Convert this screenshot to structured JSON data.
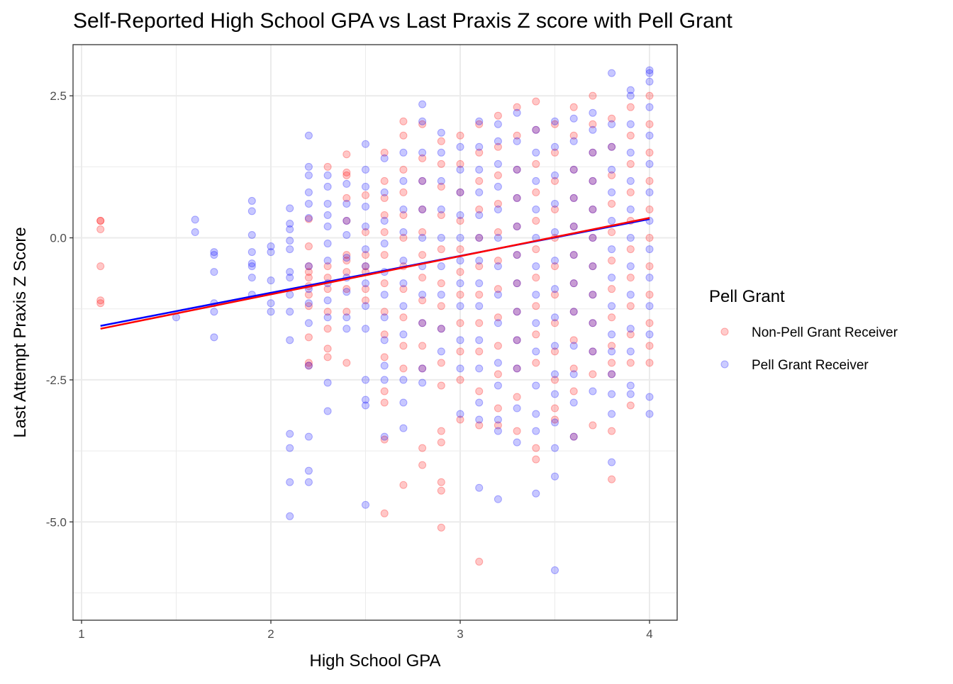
{
  "chart_data": {
    "type": "scatter",
    "title": "Self-Reported High School GPA vs Last Praxis Z score with Pell Grant",
    "xlabel": "High School GPA",
    "ylabel": "Last Attempt Praxis Z Score",
    "xlim": [
      0.955,
      4.146
    ],
    "ylim": [
      -6.73,
      3.4
    ],
    "xticks": [
      1,
      2,
      3,
      4
    ],
    "xtick_labels": [
      "1",
      "2",
      "3",
      "4"
    ],
    "yticks": [
      2.5,
      0,
      -2.5,
      -5
    ],
    "ytick_labels": [
      "2.5",
      "0.0",
      "-2.5",
      "-5.0"
    ],
    "grid": true,
    "legend": {
      "title": "Pell Grant",
      "placement": "right"
    },
    "series": [
      {
        "name": "Non-Pell Grant Receiver",
        "color": "#ff0000",
        "trend_line": {
          "x": [
            1.1,
            4.0
          ],
          "y": [
            -1.6,
            0.35
          ]
        },
        "columns": [
          {
            "x": 1.1,
            "y": [
              0.3,
              0.3,
              0.15,
              -0.5,
              -1.1,
              -1.15
            ]
          },
          {
            "x": 2.2,
            "y": [
              0.33,
              -0.15,
              -0.5,
              -0.6,
              -0.7,
              -0.85,
              -1.0,
              -1.2,
              -1.75,
              -2.2,
              -2.25
            ]
          },
          {
            "x": 2.3,
            "y": [
              1.25,
              -0.5,
              -0.7,
              -0.9,
              -1.3,
              -1.6,
              -1.95,
              -2.1
            ]
          },
          {
            "x": 2.4,
            "y": [
              1.47,
              1.15,
              1.1,
              0.7,
              0.3,
              -0.3,
              -0.4,
              -0.6,
              -0.9,
              -1.3,
              -2.2
            ]
          },
          {
            "x": 2.5,
            "y": [
              0.75,
              0.1,
              -0.3,
              -0.5,
              -0.6,
              -0.9,
              -1.1
            ]
          },
          {
            "x": 2.6,
            "y": [
              1.5,
              1.0,
              0.7,
              0.4,
              0.1,
              -0.3,
              -0.8,
              -1.3,
              -1.7,
              -2.1,
              -2.7,
              -2.9,
              -3.55,
              -4.85
            ]
          },
          {
            "x": 2.7,
            "y": [
              2.05,
              1.8,
              1.2,
              0.8,
              0.4,
              0.0,
              -0.5,
              -0.9,
              -1.4,
              -1.9,
              -2.3,
              -4.35
            ]
          },
          {
            "x": 2.8,
            "y": [
              2.0,
              1.4,
              1.0,
              0.5,
              0.1,
              -0.3,
              -0.7,
              -1.1,
              -1.5,
              -1.9,
              -2.3,
              -3.7,
              -4.0
            ]
          },
          {
            "x": 2.9,
            "y": [
              1.7,
              1.3,
              0.9,
              0.4,
              -0.2,
              -0.8,
              -1.2,
              -1.6,
              -2.2,
              -2.6,
              -3.4,
              -3.6,
              -4.3,
              -4.45,
              -5.1
            ]
          },
          {
            "x": 3.0,
            "y": [
              1.8,
              1.3,
              0.8,
              0.3,
              -0.2,
              -0.6,
              -1.0,
              -1.5,
              -2.0,
              -2.5,
              -3.2
            ]
          },
          {
            "x": 3.1,
            "y": [
              2.0,
              1.5,
              1.0,
              0.5,
              0.0,
              -0.5,
              -1.0,
              -1.5,
              -2.0,
              -2.7,
              -3.3,
              -5.7
            ]
          },
          {
            "x": 3.2,
            "y": [
              2.15,
              1.6,
              1.1,
              0.6,
              0.1,
              -0.4,
              -0.9,
              -1.4,
              -1.9,
              -2.4,
              -3.0,
              -3.3
            ]
          },
          {
            "x": 3.3,
            "y": [
              2.3,
              1.8,
              1.2,
              0.7,
              0.2,
              -0.3,
              -0.8,
              -1.3,
              -1.8,
              -2.3,
              -2.8,
              -3.4
            ]
          },
          {
            "x": 3.4,
            "y": [
              2.4,
              1.9,
              1.3,
              0.8,
              0.3,
              -0.2,
              -0.7,
              -1.2,
              -1.7,
              -2.2,
              -3.7,
              -3.9
            ]
          },
          {
            "x": 3.5,
            "y": [
              2.0,
              1.5,
              1.0,
              0.5,
              0.0,
              -0.5,
              -1.0,
              -1.5,
              -2.0,
              -2.5,
              -3.0,
              -3.2
            ]
          },
          {
            "x": 3.6,
            "y": [
              2.3,
              1.8,
              1.2,
              0.7,
              0.2,
              -0.3,
              -0.8,
              -1.3,
              -1.8,
              -2.3,
              -2.7,
              -3.5
            ]
          },
          {
            "x": 3.7,
            "y": [
              2.5,
              2.0,
              1.5,
              1.0,
              0.5,
              0.0,
              -0.5,
              -1.0,
              -1.5,
              -2.0,
              -2.4,
              -3.3
            ]
          },
          {
            "x": 3.8,
            "y": [
              2.1,
              1.6,
              1.1,
              0.6,
              0.1,
              -0.4,
              -0.9,
              -1.4,
              -1.9,
              -2.2,
              -2.4,
              -3.4,
              -4.25
            ]
          },
          {
            "x": 3.9,
            "y": [
              2.3,
              1.8,
              1.3,
              0.8,
              0.3,
              -0.2,
              -0.7,
              -1.2,
              -1.7,
              -2.2,
              -2.95
            ]
          },
          {
            "x": 4.0,
            "y": [
              2.5,
              2.0,
              1.5,
              1.0,
              0.5,
              0.0,
              -0.5,
              -1.0,
              -1.5,
              -1.9,
              -2.2
            ]
          }
        ]
      },
      {
        "name": "Pell Grant Receiver",
        "color": "#0000ff",
        "trend_line": {
          "x": [
            1.1,
            4.0
          ],
          "y": [
            -1.55,
            0.33
          ]
        },
        "columns": [
          {
            "x": 1.5,
            "y": [
              -1.4
            ]
          },
          {
            "x": 1.6,
            "y": [
              0.32,
              0.1
            ]
          },
          {
            "x": 1.7,
            "y": [
              -0.25,
              -0.3,
              -0.6,
              -1.15,
              -1.3,
              -1.75
            ]
          },
          {
            "x": 1.9,
            "y": [
              0.65,
              0.47,
              0.05,
              -0.25,
              -0.45,
              -0.5,
              -0.7,
              -1.0
            ]
          },
          {
            "x": 2.0,
            "y": [
              -0.15,
              -0.25,
              -0.75,
              -1.15,
              -1.3
            ]
          },
          {
            "x": 2.1,
            "y": [
              0.52,
              0.25,
              0.15,
              -0.05,
              -0.2,
              -0.6,
              -0.7,
              -1.0,
              -1.3,
              -1.8,
              -3.45,
              -3.7,
              -4.3,
              -4.9
            ]
          },
          {
            "x": 2.2,
            "y": [
              1.8,
              1.25,
              1.1,
              0.8,
              0.6,
              0.35,
              -0.5,
              -0.9,
              -1.15,
              -1.5,
              -2.25,
              -3.5,
              -4.1,
              -4.3
            ]
          },
          {
            "x": 2.3,
            "y": [
              1.1,
              0.9,
              0.6,
              0.4,
              0.2,
              -0.1,
              -0.4,
              -0.8,
              -1.1,
              -1.4,
              -2.55,
              -3.05
            ]
          },
          {
            "x": 2.4,
            "y": [
              0.95,
              0.6,
              0.3,
              0.05,
              -0.35,
              -0.7,
              -0.95,
              -1.4,
              -1.6
            ]
          },
          {
            "x": 2.5,
            "y": [
              1.65,
              1.2,
              0.9,
              0.55,
              0.2,
              -0.2,
              -0.5,
              -0.8,
              -1.2,
              -1.6,
              -2.5,
              -2.85,
              -2.95,
              -4.7
            ]
          },
          {
            "x": 2.6,
            "y": [
              1.4,
              0.8,
              0.3,
              -0.1,
              -0.6,
              -1.0,
              -1.4,
              -1.8,
              -2.25,
              -2.5,
              -3.5
            ]
          },
          {
            "x": 2.7,
            "y": [
              1.5,
              1.0,
              0.5,
              0.1,
              -0.4,
              -0.8,
              -1.2,
              -1.7,
              -2.5,
              -2.9,
              -3.35
            ]
          },
          {
            "x": 2.8,
            "y": [
              2.35,
              2.05,
              1.5,
              1.0,
              0.5,
              0.0,
              -0.5,
              -1.0,
              -1.5,
              -2.3,
              -2.55
            ]
          },
          {
            "x": 2.9,
            "y": [
              1.85,
              1.5,
              1.0,
              0.5,
              0.0,
              -0.5,
              -1.0,
              -1.6,
              -2.0
            ]
          },
          {
            "x": 3.0,
            "y": [
              1.6,
              1.2,
              0.8,
              0.4,
              0.0,
              -0.4,
              -0.8,
              -1.2,
              -1.8,
              -2.3,
              -3.1
            ]
          },
          {
            "x": 3.1,
            "y": [
              2.05,
              1.6,
              1.2,
              0.8,
              0.4,
              0.0,
              -0.4,
              -0.8,
              -1.2,
              -1.8,
              -2.3,
              -2.9,
              -3.2,
              -4.4
            ]
          },
          {
            "x": 3.2,
            "y": [
              2.0,
              1.7,
              1.3,
              0.9,
              0.5,
              0.0,
              -0.5,
              -1.0,
              -1.5,
              -2.2,
              -2.6,
              -3.2,
              -3.4,
              -4.6
            ]
          },
          {
            "x": 3.3,
            "y": [
              2.2,
              1.7,
              1.2,
              0.7,
              0.2,
              -0.3,
              -0.8,
              -1.3,
              -1.8,
              -2.3,
              -3.0,
              -3.6
            ]
          },
          {
            "x": 3.4,
            "y": [
              1.9,
              1.5,
              1.0,
              0.5,
              0.0,
              -0.5,
              -1.0,
              -1.5,
              -2.0,
              -2.6,
              -3.1,
              -3.4,
              -4.5
            ]
          },
          {
            "x": 3.5,
            "y": [
              2.05,
              1.6,
              1.1,
              0.6,
              0.1,
              -0.4,
              -0.9,
              -1.4,
              -1.9,
              -2.4,
              -2.75,
              -3.25,
              -3.7,
              -4.2,
              -5.85
            ]
          },
          {
            "x": 3.6,
            "y": [
              2.1,
              1.7,
              1.2,
              0.7,
              0.2,
              -0.3,
              -0.8,
              -1.3,
              -1.9,
              -2.4,
              -2.9,
              -3.5
            ]
          },
          {
            "x": 3.7,
            "y": [
              2.2,
              1.9,
              1.5,
              1.0,
              0.5,
              0.0,
              -0.5,
              -1.0,
              -1.5,
              -2.0,
              -2.7
            ]
          },
          {
            "x": 3.8,
            "y": [
              2.9,
              2.0,
              1.6,
              1.2,
              0.8,
              0.3,
              -0.2,
              -0.7,
              -1.2,
              -1.7,
              -2.0,
              -2.4,
              -2.75,
              -3.1,
              -3.95
            ]
          },
          {
            "x": 3.9,
            "y": [
              2.6,
              2.5,
              2.0,
              1.5,
              1.0,
              0.5,
              0.0,
              -0.5,
              -1.0,
              -1.6,
              -2.0,
              -2.6,
              -2.75
            ]
          },
          {
            "x": 4.0,
            "y": [
              2.95,
              2.9,
              2.75,
              2.3,
              1.8,
              1.3,
              0.8,
              0.3,
              -0.2,
              -0.7,
              -1.2,
              -1.7,
              -2.8,
              -3.1
            ]
          }
        ]
      }
    ]
  }
}
